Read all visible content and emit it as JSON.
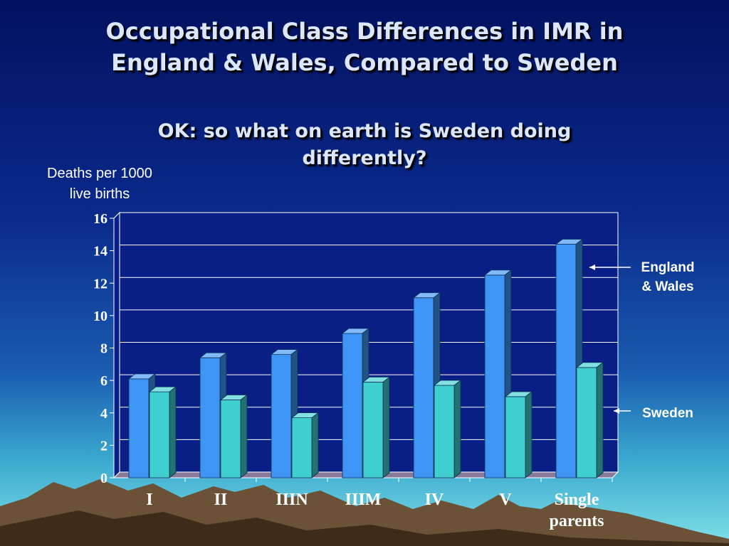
{
  "title_line1": "Occupational Class Differences in IMR in",
  "title_line2": "England & Wales, Compared to Sweden",
  "subtitle_line1": "OK: so what on earth is Sweden doing",
  "subtitle_line2": "differently?",
  "ylabel_line1": "Deaths per 1000",
  "ylabel_line2": "live births",
  "legend": {
    "england_line1": "England",
    "england_line2": "& Wales",
    "sweden": "Sweden"
  },
  "colors": {
    "england": "#3f95f5",
    "sweden": "#3fcfcf"
  },
  "chart_data": {
    "type": "bar",
    "categories": [
      "I",
      "II",
      "IIIN",
      "IIIM",
      "IV",
      "V",
      "Single parents"
    ],
    "category_lines": [
      [
        "I"
      ],
      [
        "II"
      ],
      [
        "IIIN"
      ],
      [
        "IIIM"
      ],
      [
        "IV"
      ],
      [
        "V"
      ],
      [
        "Single",
        "parents"
      ]
    ],
    "series": [
      {
        "name": "England & Wales",
        "values": [
          6.1,
          7.4,
          7.6,
          8.9,
          11.1,
          12.5,
          14.4
        ]
      },
      {
        "name": "Sweden",
        "values": [
          5.3,
          4.8,
          3.7,
          5.9,
          5.7,
          5.0,
          6.8
        ]
      }
    ],
    "yticks": [
      "0",
      "2",
      "4",
      "6",
      "8",
      "10",
      "12",
      "14",
      "16"
    ],
    "ylim": [
      0,
      16
    ],
    "grid": true,
    "legend_position": "right"
  }
}
